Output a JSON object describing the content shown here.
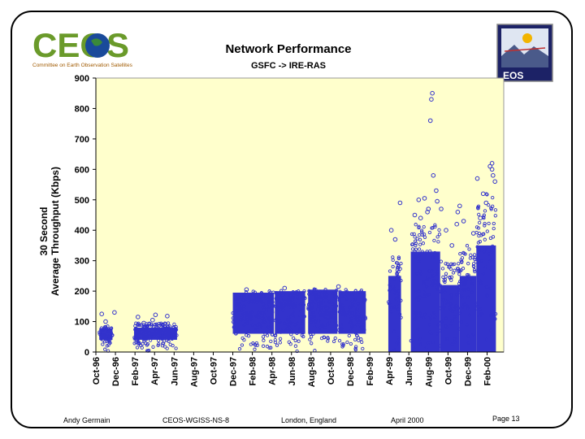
{
  "logo": {
    "text": "CEOS",
    "tagline": "Committee on Earth Observation Satellites"
  },
  "badge": {
    "text": "EOS"
  },
  "footer": {
    "author": "Andy Germain",
    "doc_id": "CEOS-WGISS-NS-8",
    "location": "London, England",
    "date": "April 2000",
    "page": "Page 13"
  },
  "colors": {
    "plot_bg": "#ffffcc",
    "marker": "#3333cc",
    "accent_green": "#6a9a2a",
    "badge_bg": "#1c2266"
  },
  "chart_data": {
    "type": "scatter",
    "title": "Network Performance",
    "subtitle": "GSFC -> IRE-RAS",
    "ylabel_lines": [
      "30 Second",
      "Average Throughput (Kbps)"
    ],
    "ylim": [
      0,
      900
    ],
    "yticks": [
      0,
      100,
      200,
      300,
      400,
      500,
      600,
      700,
      800,
      900
    ],
    "xlim": [
      0,
      41.7
    ],
    "xticks": [
      {
        "label": "Oct-96",
        "pos": 0
      },
      {
        "label": "Dec-96",
        "pos": 2
      },
      {
        "label": "Feb-97",
        "pos": 4
      },
      {
        "label": "Apr-97",
        "pos": 6
      },
      {
        "label": "Jun-97",
        "pos": 8
      },
      {
        "label": "Aug-97",
        "pos": 10
      },
      {
        "label": "Oct-97",
        "pos": 12
      },
      {
        "label": "Dec-97",
        "pos": 14
      },
      {
        "label": "Feb-98",
        "pos": 16
      },
      {
        "label": "Apr-98",
        "pos": 18
      },
      {
        "label": "Jun-98",
        "pos": 20
      },
      {
        "label": "Aug-98",
        "pos": 22
      },
      {
        "label": "Oct-98",
        "pos": 24
      },
      {
        "label": "Dec-98",
        "pos": 26
      },
      {
        "label": "Feb-99",
        "pos": 28
      },
      {
        "label": "Apr-99",
        "pos": 30
      },
      {
        "label": "Jun-99",
        "pos": 32
      },
      {
        "label": "Aug-99",
        "pos": 34
      },
      {
        "label": "Oct-99",
        "pos": 36
      },
      {
        "label": "Dec-99",
        "pos": 38
      },
      {
        "label": "Feb-00",
        "pos": 40
      }
    ],
    "grid": false,
    "series": [
      {
        "name": "30 second throughput",
        "segments": [
          {
            "x_start": 0.35,
            "x_end": 1.7,
            "y_low": 0,
            "y_high": 85,
            "dense_low": 40,
            "dense_high": 78
          },
          {
            "x_start": 3.9,
            "x_end": 8.3,
            "y_low": 0,
            "y_high": 95,
            "dense_low": 40,
            "dense_high": 80
          },
          {
            "x_start": 14.0,
            "x_end": 18.2,
            "y_low": 0,
            "y_high": 200,
            "dense_low": 60,
            "dense_high": 195
          },
          {
            "x_start": 18.3,
            "x_end": 21.4,
            "y_low": 0,
            "y_high": 205,
            "dense_low": 60,
            "dense_high": 200
          },
          {
            "x_start": 21.7,
            "x_end": 24.7,
            "y_low": 0,
            "y_high": 210,
            "dense_low": 60,
            "dense_high": 205
          },
          {
            "x_start": 24.8,
            "x_end": 27.6,
            "y_low": 0,
            "y_high": 205,
            "dense_low": 60,
            "dense_high": 200
          },
          {
            "x_start": 29.9,
            "x_end": 31.2,
            "y_low": 0,
            "y_high": 330,
            "dense_low": 0,
            "dense_high": 250
          },
          {
            "x_start": 32.2,
            "x_end": 35.2,
            "y_low": 0,
            "y_high": 420,
            "dense_low": 0,
            "dense_high": 330
          },
          {
            "x_start": 35.2,
            "x_end": 37.2,
            "y_low": 0,
            "y_high": 300,
            "dense_low": 0,
            "dense_high": 220
          },
          {
            "x_start": 37.2,
            "x_end": 38.9,
            "y_low": 0,
            "y_high": 350,
            "dense_low": 0,
            "dense_high": 250
          },
          {
            "x_start": 38.9,
            "x_end": 40.9,
            "y_low": 0,
            "y_high": 520,
            "dense_low": 0,
            "dense_high": 350
          }
        ],
        "outliers": [
          [
            0.6,
            125
          ],
          [
            1.0,
            100
          ],
          [
            1.9,
            130
          ],
          [
            4.3,
            115
          ],
          [
            6.1,
            122
          ],
          [
            7.3,
            118
          ],
          [
            4.9,
            95
          ],
          [
            5.8,
            105
          ],
          [
            15.4,
            205
          ],
          [
            19.3,
            210
          ],
          [
            24.8,
            215
          ],
          [
            30.2,
            400
          ],
          [
            30.6,
            370
          ],
          [
            31.1,
            490
          ],
          [
            32.6,
            450
          ],
          [
            33.0,
            500
          ],
          [
            33.6,
            505
          ],
          [
            33.9,
            460
          ],
          [
            34.2,
            760
          ],
          [
            34.3,
            830
          ],
          [
            34.4,
            850
          ],
          [
            34.5,
            580
          ],
          [
            34.8,
            530
          ],
          [
            34.9,
            495
          ],
          [
            35.3,
            470
          ],
          [
            35.8,
            400
          ],
          [
            36.4,
            350
          ],
          [
            37.0,
            460
          ],
          [
            37.2,
            480
          ],
          [
            37.6,
            430
          ],
          [
            38.6,
            390
          ],
          [
            39.0,
            570
          ],
          [
            39.3,
            440
          ],
          [
            39.6,
            520
          ],
          [
            39.9,
            490
          ],
          [
            40.3,
            610
          ],
          [
            40.5,
            600
          ],
          [
            40.6,
            580
          ],
          [
            40.8,
            560
          ],
          [
            40.5,
            620
          ],
          [
            33.2,
            440
          ],
          [
            34.0,
            470
          ],
          [
            36.9,
            420
          ]
        ]
      }
    ]
  }
}
